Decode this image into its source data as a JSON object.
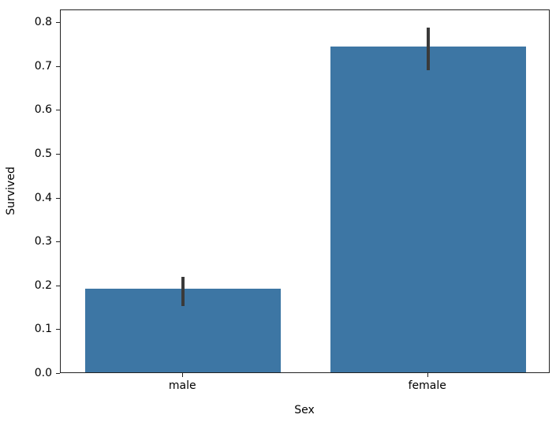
{
  "chart_data": {
    "type": "bar",
    "title": "",
    "xlabel": "Sex",
    "ylabel": "Survived",
    "categories": [
      "male",
      "female"
    ],
    "values": [
      0.19,
      0.742
    ],
    "error_bars": [
      {
        "low": 0.155,
        "high": 0.222
      },
      {
        "low": 0.693,
        "high": 0.79
      }
    ],
    "ylim": [
      0.0,
      0.829
    ],
    "yticks": [
      0.0,
      0.1,
      0.2,
      0.3,
      0.4,
      0.5,
      0.6,
      0.7,
      0.8
    ],
    "ytick_labels": [
      "0.0",
      "0.1",
      "0.2",
      "0.3",
      "0.4",
      "0.5",
      "0.6",
      "0.7",
      "0.8"
    ],
    "grid": false,
    "legend": null,
    "bar_color": "#3d76a4",
    "errorbar_color": "#3a3a3a",
    "axis_color": "#222222",
    "background_color": "#ffffff",
    "bar_rel_width": 0.8
  }
}
